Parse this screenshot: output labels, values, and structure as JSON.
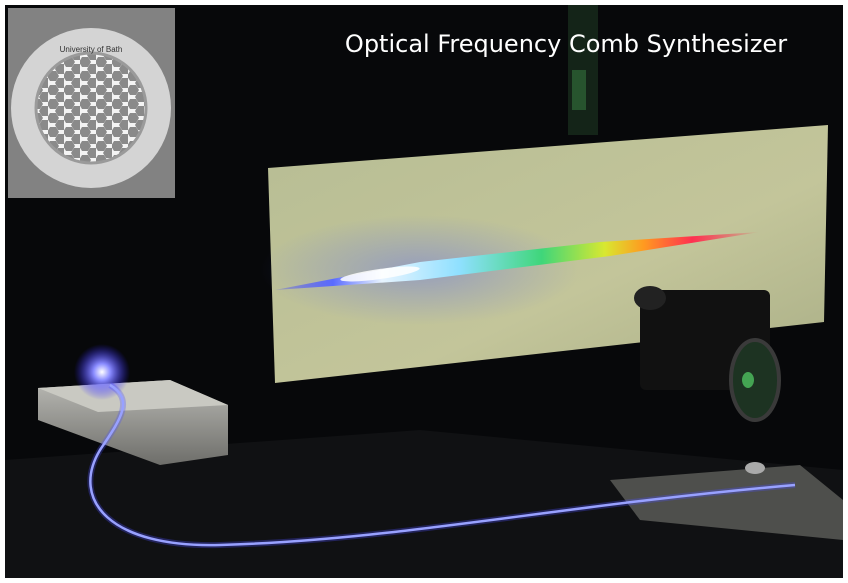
{
  "title": "Optical Frequency Comb Synthesizer",
  "inset": {
    "label": "University of Bath"
  }
}
